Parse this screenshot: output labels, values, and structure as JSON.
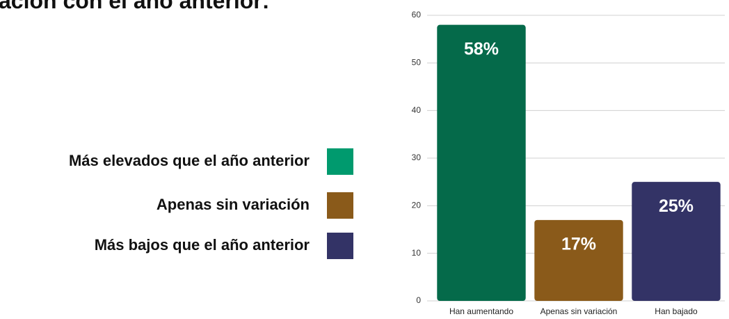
{
  "chart_data": {
    "type": "bar",
    "title": "ación con el año anterior:",
    "categories": [
      "Han aumentando",
      "Apenas sin variación",
      "Han bajado"
    ],
    "values": [
      58,
      17,
      25
    ],
    "value_labels": [
      "58%",
      "17%",
      "25%"
    ],
    "colors": [
      "#056a4a",
      "#8a5a1a",
      "#333366"
    ],
    "ylim": [
      0,
      60
    ],
    "yticks": [
      0,
      10,
      20,
      30,
      40,
      50,
      60
    ],
    "grid": true,
    "legend": [
      {
        "name": "Más elevados que el año anterior",
        "color": "#009a6e"
      },
      {
        "name": "Apenas sin variación",
        "color": "#8a5a1a"
      },
      {
        "name": "Más bajos que el año anterior",
        "color": "#333366"
      }
    ]
  }
}
